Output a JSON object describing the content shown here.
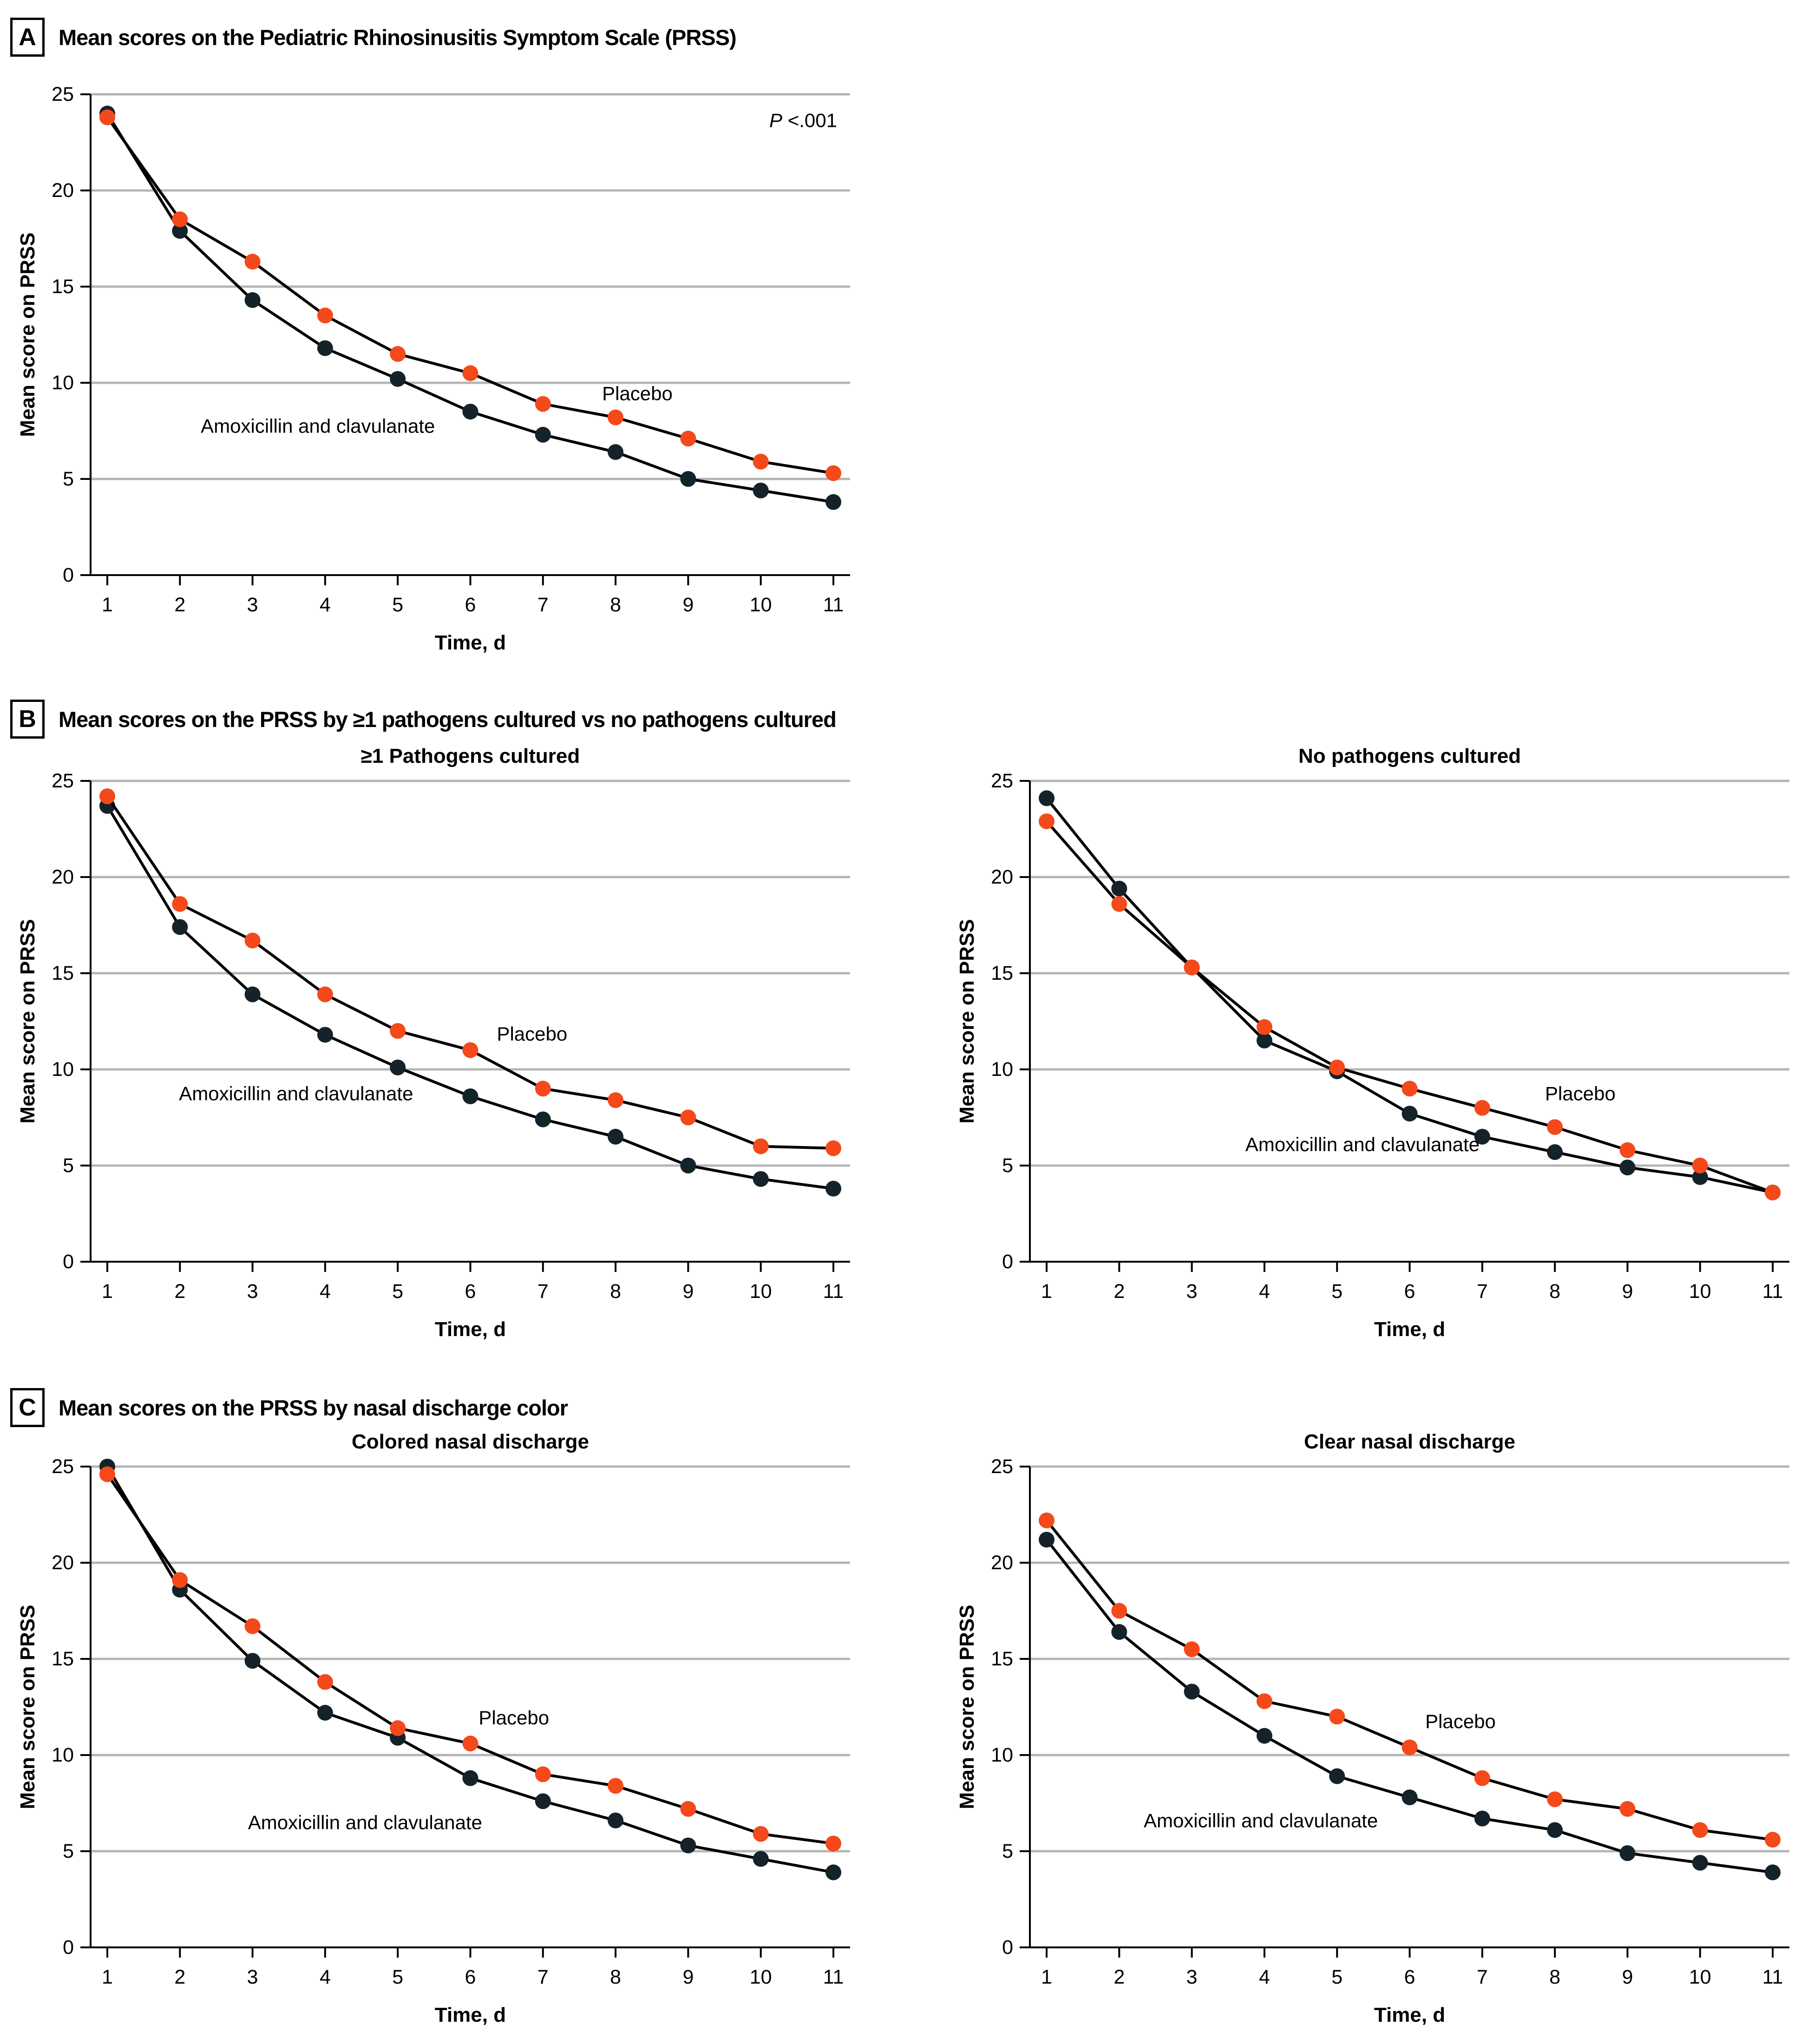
{
  "figure": {
    "panels": [
      {
        "label": "A",
        "title": "Mean scores on the Pediatric Rhinosinusitis Symptom Scale (PRSS)"
      },
      {
        "label": "B",
        "title": "Mean scores on the PRSS by ≥1 pathogens cultured vs no pathogens cultured"
      },
      {
        "label": "C",
        "title": "Mean scores on the PRSS by nasal discharge color"
      }
    ],
    "colors": {
      "amoxicillin": "#142329",
      "placebo": "#F4491A",
      "line": "#000000",
      "gridline": "#B4B4B4",
      "axis": "#000000",
      "text": "#000000",
      "background": "#FFFFFF"
    }
  },
  "chart_data": [
    {
      "type": "line",
      "panel": "A",
      "subtitle": "",
      "xlabel": "Time, d",
      "ylabel": "Mean score on PRSS",
      "x": [
        1,
        2,
        3,
        4,
        5,
        6,
        7,
        8,
        9,
        10,
        11
      ],
      "ylim": [
        0,
        25
      ],
      "yticks": [
        0,
        5,
        10,
        15,
        20,
        25
      ],
      "grid": true,
      "legend_position": "inline-labels",
      "annotation": {
        "italic": "P",
        "rest": " <.001"
      },
      "series": [
        {
          "name": "Amoxicillin and clavulanate",
          "color": "amoxicillin",
          "values": [
            24.0,
            17.9,
            14.3,
            11.8,
            10.2,
            8.5,
            7.3,
            6.4,
            5.0,
            4.4,
            3.8
          ],
          "label_at": {
            "day": 3.9,
            "value": 7.75
          }
        },
        {
          "name": "Placebo",
          "color": "placebo",
          "values": [
            23.8,
            18.5,
            16.3,
            13.5,
            11.5,
            10.5,
            8.9,
            8.2,
            7.1,
            5.9,
            5.3
          ],
          "label_at": {
            "day": 8.3,
            "value": 9.45
          }
        }
      ]
    },
    {
      "type": "line",
      "panel": "B",
      "subtitle": "≥1 Pathogens cultured",
      "xlabel": "Time, d",
      "ylabel": "Mean score on PRSS",
      "x": [
        1,
        2,
        3,
        4,
        5,
        6,
        7,
        8,
        9,
        10,
        11
      ],
      "ylim": [
        0,
        25
      ],
      "yticks": [
        0,
        5,
        10,
        15,
        20,
        25
      ],
      "grid": true,
      "legend_position": "inline-labels",
      "annotation": null,
      "series": [
        {
          "name": "Amoxicillin and clavulanate",
          "color": "amoxicillin",
          "values": [
            23.7,
            17.4,
            13.9,
            11.8,
            10.1,
            8.6,
            7.4,
            6.5,
            5.0,
            4.3,
            3.8
          ],
          "label_at": {
            "day": 3.6,
            "value": 8.75
          }
        },
        {
          "name": "Placebo",
          "color": "placebo",
          "values": [
            24.2,
            18.6,
            16.7,
            13.9,
            12.0,
            11.0,
            9.0,
            8.4,
            7.5,
            6.0,
            5.9
          ],
          "label_at": {
            "day": 6.85,
            "value": 11.85
          }
        }
      ]
    },
    {
      "type": "line",
      "panel": "B",
      "subtitle": "No pathogens cultured",
      "xlabel": "Time, d",
      "ylabel": "Mean score on PRSS",
      "x": [
        1,
        2,
        3,
        4,
        5,
        6,
        7,
        8,
        9,
        10,
        11
      ],
      "ylim": [
        0,
        25
      ],
      "yticks": [
        0,
        5,
        10,
        15,
        20,
        25
      ],
      "grid": true,
      "legend_position": "inline-labels",
      "annotation": null,
      "series": [
        {
          "name": "Amoxicillin and clavulanate",
          "color": "amoxicillin",
          "values": [
            24.1,
            19.4,
            15.3,
            11.5,
            9.9,
            7.7,
            6.5,
            5.7,
            4.9,
            4.4,
            3.6
          ],
          "label_at": {
            "day": 5.35,
            "value": 6.1
          }
        },
        {
          "name": "Placebo",
          "color": "placebo",
          "values": [
            22.9,
            18.6,
            15.3,
            12.2,
            10.1,
            9.0,
            8.0,
            7.0,
            5.8,
            5.0,
            3.6
          ],
          "label_at": {
            "day": 8.35,
            "value": 8.75
          }
        }
      ]
    },
    {
      "type": "line",
      "panel": "C",
      "subtitle": "Colored nasal discharge",
      "xlabel": "Time, d",
      "ylabel": "Mean score on PRSS",
      "x": [
        1,
        2,
        3,
        4,
        5,
        6,
        7,
        8,
        9,
        10,
        11
      ],
      "ylim": [
        0,
        25
      ],
      "yticks": [
        0,
        5,
        10,
        15,
        20,
        25
      ],
      "grid": true,
      "legend_position": "inline-labels",
      "annotation": null,
      "series": [
        {
          "name": "Amoxicillin and clavulanate",
          "color": "amoxicillin",
          "values": [
            25.0,
            18.6,
            14.9,
            12.2,
            10.9,
            8.8,
            7.6,
            6.6,
            5.3,
            4.6,
            3.9
          ],
          "label_at": {
            "day": 4.55,
            "value": 6.5
          }
        },
        {
          "name": "Placebo",
          "color": "placebo",
          "values": [
            24.6,
            19.1,
            16.7,
            13.8,
            11.4,
            10.6,
            9.0,
            8.4,
            7.2,
            5.9,
            5.4
          ],
          "label_at": {
            "day": 6.6,
            "value": 11.95
          }
        }
      ]
    },
    {
      "type": "line",
      "panel": "C",
      "subtitle": "Clear nasal discharge",
      "xlabel": "Time, d",
      "ylabel": "Mean score on PRSS",
      "x": [
        1,
        2,
        3,
        4,
        5,
        6,
        7,
        8,
        9,
        10,
        11
      ],
      "ylim": [
        0,
        25
      ],
      "yticks": [
        0,
        5,
        10,
        15,
        20,
        25
      ],
      "grid": true,
      "legend_position": "inline-labels",
      "annotation": null,
      "series": [
        {
          "name": "Amoxicillin and clavulanate",
          "color": "amoxicillin",
          "values": [
            21.2,
            16.4,
            13.3,
            11.0,
            8.9,
            7.8,
            6.7,
            6.1,
            4.9,
            4.4,
            3.9
          ],
          "label_at": {
            "day": 3.95,
            "value": 6.6
          }
        },
        {
          "name": "Placebo",
          "color": "placebo",
          "values": [
            22.2,
            17.5,
            15.5,
            12.8,
            12.0,
            10.4,
            8.8,
            7.7,
            7.2,
            6.1,
            5.6
          ],
          "label_at": {
            "day": 6.7,
            "value": 11.75
          }
        }
      ]
    }
  ]
}
